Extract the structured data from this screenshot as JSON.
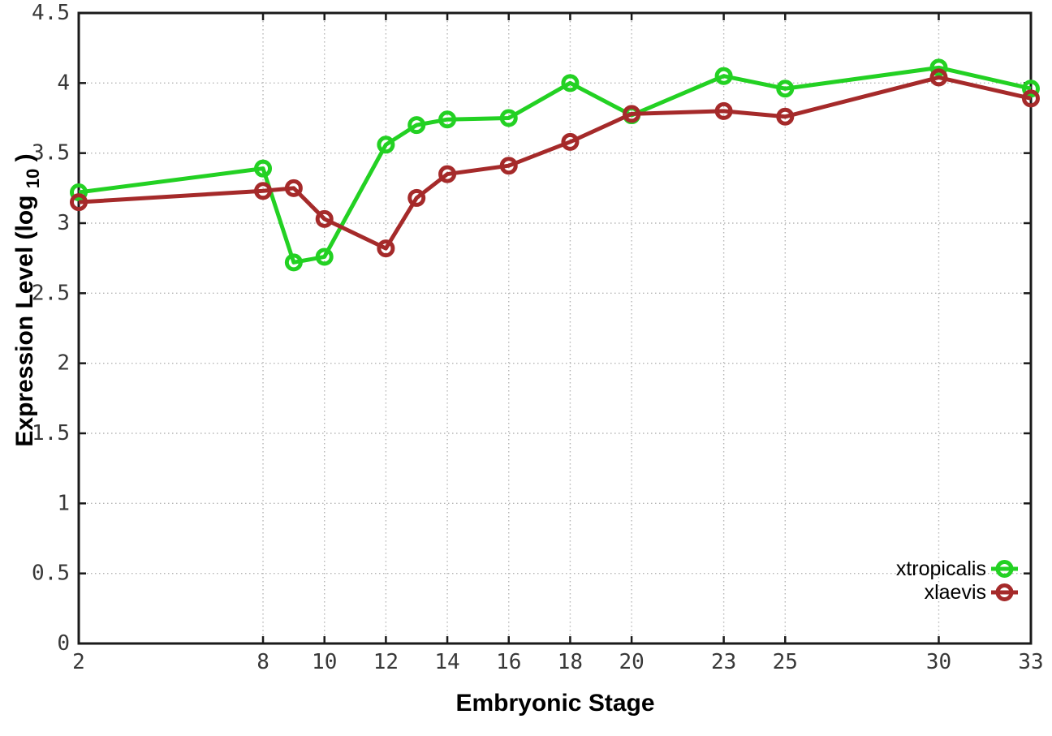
{
  "chart_data": {
    "type": "line",
    "title": "",
    "xlabel": "Embryonic Stage",
    "ylabel": "Expression Level (log10)",
    "ylabel_parts": {
      "main": "Expression Level (log",
      "sub": "10",
      "end": ")"
    },
    "x": [
      2,
      8,
      9,
      10,
      12,
      13,
      14,
      16,
      18,
      20,
      23,
      25,
      30,
      33
    ],
    "series": [
      {
        "name": "xtropicalis",
        "color": "#23d123",
        "values": [
          3.22,
          3.39,
          2.72,
          2.76,
          3.56,
          3.7,
          3.74,
          3.75,
          4.0,
          3.77,
          4.05,
          3.96,
          4.11,
          3.96
        ]
      },
      {
        "name": "xlaevis",
        "color": "#a52a2a",
        "values": [
          3.15,
          3.23,
          3.25,
          3.03,
          2.82,
          3.18,
          3.35,
          3.41,
          3.58,
          3.78,
          3.8,
          3.76,
          4.04,
          3.89
        ]
      }
    ],
    "xlim": [
      2,
      33
    ],
    "ylim": [
      0,
      4.5
    ],
    "x_ticks": [
      2,
      8,
      10,
      12,
      14,
      16,
      18,
      20,
      23,
      25,
      30,
      33
    ],
    "x_tick_labels": [
      "2",
      "8",
      "10",
      "12",
      "14",
      "16",
      "18",
      "20",
      "23",
      "25",
      "30",
      "33"
    ],
    "y_ticks": [
      0,
      0.5,
      1,
      1.5,
      2,
      2.5,
      3,
      3.5,
      4,
      4.5
    ],
    "y_tick_labels": [
      "0",
      "0.5",
      "1",
      "1.5",
      "2",
      "2.5",
      "3",
      "3.5",
      "4",
      "4.5"
    ],
    "grid": true,
    "legend_position": "inside-bottom-right"
  },
  "colors": {
    "background": "#ffffff",
    "plot_border": "#1a1a1a",
    "gridline": "#b5b5b5",
    "tick_mark": "#1a1a1a",
    "tick_label": "#383838",
    "axis_title": "#000000",
    "legend_text": "#000000"
  }
}
